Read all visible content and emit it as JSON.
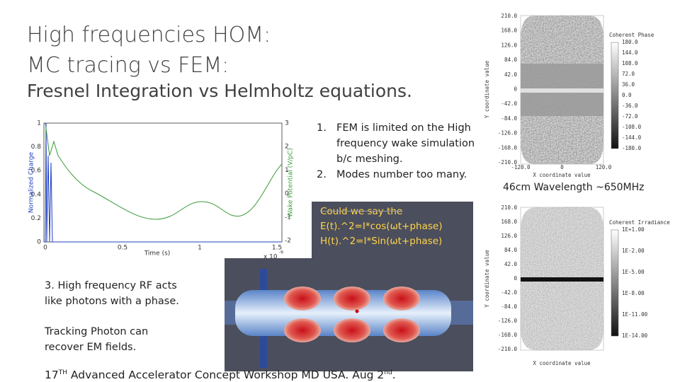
{
  "title": {
    "lines": [
      "High frequencies HOM:",
      "MC tracing vs FEM:"
    ],
    "subtitle": "Fresnel Integration vs Helmholtz equations."
  },
  "wake_plot": {
    "y_label": "Normalized Charge",
    "y2_label": "Wake Potential (V/pC)",
    "x_label": "Time (s)",
    "x_scale": "x 10",
    "x_scale_exp": "-9",
    "yticks": [
      "1",
      "0.8",
      "0.6",
      "0.4",
      "0.2",
      "0"
    ],
    "y2ticks": [
      "3",
      "2",
      "1",
      "0",
      "-1",
      "-2"
    ],
    "xticks": [
      "0",
      "0.5",
      "1",
      "1.5"
    ]
  },
  "list": {
    "markers": [
      "1.",
      "2."
    ],
    "items": [
      "FEM is limited on the High frequency wake simulation b/c meshing.",
      "Modes number too many."
    ]
  },
  "phase_map": {
    "y_label": "Y coordinate value",
    "x_label": "X coordinate value",
    "yticks": [
      "210.0",
      "168.0",
      "126.0",
      "84.0",
      "42.0",
      "0",
      "-42.0",
      "-84.0",
      "-126.0",
      "-168.0",
      "-210.0"
    ],
    "xticks": [
      "-120.0",
      "0",
      "120.0"
    ],
    "colorbar_title": "Coherent Phase",
    "colorbar_ticks": [
      "180.0",
      "144.0",
      "108.0",
      "72.0",
      "36.0",
      "0.0",
      "-36.0",
      "-72.0",
      "-108.0",
      "-144.0",
      "-180.0"
    ]
  },
  "wavelength": "46cm Wavelength  ~650MHz",
  "question": [
    "Could we say the",
    "E(t).^2=I*cos(ωt+phase)",
    "H(t).^2=I*Sin(ωt+phase)"
  ],
  "irradiance_map": {
    "y_label": "Y coordinate value",
    "x_label": "X coordinate value",
    "yticks": [
      "210.0",
      "168.0",
      "126.0",
      "84.0",
      "42.0",
      "0",
      "-42.0",
      "-84.0",
      "-126.0",
      "-168.0",
      "-210.0"
    ],
    "colorbar_title": "Coherent Irradiance",
    "colorbar_ticks": [
      "1E+1.00",
      "1E-2.00",
      "1E-5.00",
      "1E-8.00",
      "1E-11.00",
      "1E-14.00"
    ]
  },
  "notes": [
    [
      "3. High frequency RF acts",
      "like photons with a phase."
    ],
    [
      "Tracking Photon can",
      "recover EM fields."
    ]
  ],
  "footer": {
    "number": "17",
    "suffix": "TH",
    "text": " Advanced Accelerator Concept Workshop MD USA. Aug 2",
    "day_suffix": "nd",
    "end": "."
  }
}
